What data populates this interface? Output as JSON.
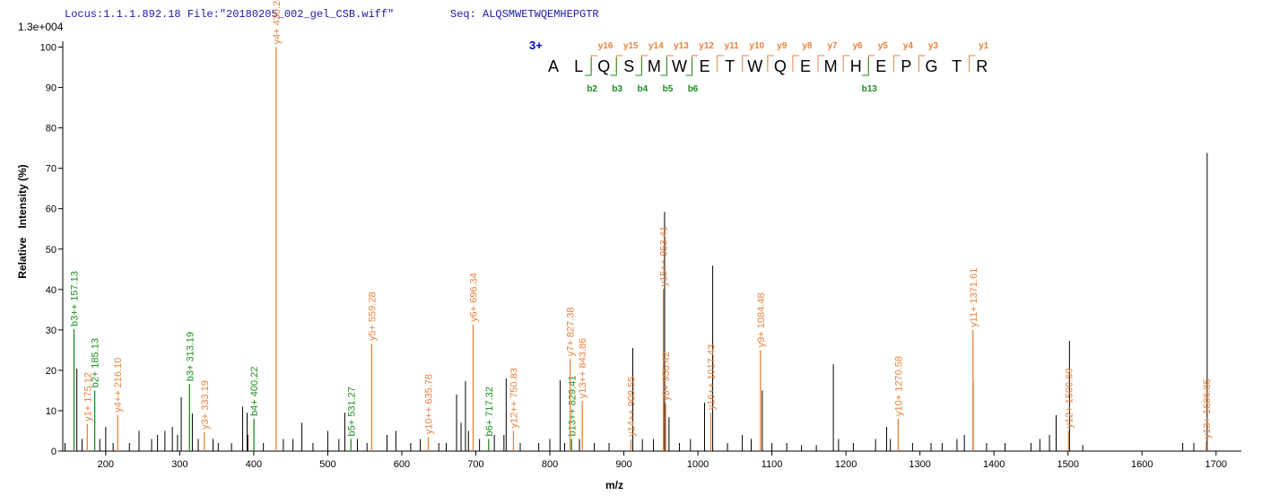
{
  "chart_data": {
    "type": "stem",
    "header": {
      "locus": "Locus:1.1.1.892.18 File:\"20180205_002_gel_CSB.wiff\"",
      "seq": "Seq: ALQSMWETWQEMHEPGTR"
    },
    "scale_label": "1.3e+004",
    "x_label": "m/z",
    "y_label": "Relative   Intensity (%)",
    "xlim": [
      142,
      1733
    ],
    "ylim": [
      0,
      101
    ],
    "xticks": [
      200,
      300,
      400,
      500,
      600,
      700,
      800,
      900,
      1000,
      1100,
      1200,
      1300,
      1400,
      1500,
      1600,
      1700
    ],
    "yticks": [
      0,
      10,
      20,
      30,
      40,
      50,
      60,
      70,
      80,
      90,
      100
    ],
    "peaks": {
      "color": "#000000",
      "x": [
        145,
        161,
        168,
        192,
        200,
        210,
        232,
        245,
        262,
        270,
        280,
        290,
        297,
        302,
        317,
        325,
        345,
        352,
        370,
        385,
        391,
        392,
        413,
        440,
        453,
        465,
        480,
        500,
        515,
        523,
        540,
        553,
        580,
        592,
        612,
        625,
        650,
        660,
        674,
        680,
        686,
        690,
        705,
        725,
        738,
        741,
        760,
        785,
        800,
        814,
        820,
        840,
        860,
        880,
        912,
        925,
        940,
        955,
        961,
        975,
        990,
        1009,
        1020,
        1040,
        1060,
        1072,
        1087,
        1100,
        1120,
        1140,
        1160,
        1183,
        1190,
        1210,
        1240,
        1255,
        1260,
        1290,
        1315,
        1330,
        1350,
        1360,
        1372,
        1390,
        1415,
        1450,
        1462,
        1475,
        1484,
        1502,
        1520,
        1655,
        1670,
        1688
      ],
      "values": [
        2,
        20.4,
        3,
        3,
        6,
        2,
        2,
        5,
        3,
        4,
        5,
        6,
        4,
        13.3,
        9.3,
        3,
        3,
        2,
        2,
        11,
        9.5,
        4,
        2,
        3,
        3,
        7,
        2,
        5,
        3,
        9.5,
        3,
        2,
        4,
        5,
        2,
        3,
        2,
        2,
        14,
        7,
        17.3,
        5,
        3,
        4,
        4,
        18,
        2,
        2,
        3,
        17.5,
        2,
        3,
        2,
        2,
        25.5,
        3,
        3,
        59.2,
        8.4,
        2,
        3,
        12,
        45.9,
        2,
        4,
        3,
        15,
        2,
        2,
        1.5,
        1.5,
        21.5,
        3,
        2,
        3,
        6,
        3,
        2,
        2,
        2,
        3,
        4,
        17.3,
        2,
        2,
        2,
        3,
        4,
        8.9,
        27.3,
        1.5,
        2,
        2,
        73.8
      ]
    },
    "series": [
      {
        "color": "#1e8c1e",
        "x": [
          157.13,
          185.13,
          313.19,
          400.22,
          531.27,
          717.32,
          829.41
        ],
        "values": [
          30.2,
          15,
          16.6,
          8,
          3,
          3,
          3
        ],
        "labels": [
          "b3++ 157.13",
          "b2+ 185.13",
          "b3+ 313.19",
          "b4+ 400.22",
          "b5+ 531.27",
          "b6+ 717.32",
          "b13++ 829.41"
        ]
      },
      {
        "color": "#e8823c",
        "x": [
          175.12,
          216.1,
          333.19,
          430.24,
          559.28,
          635.78,
          696.34,
          750.83,
          827.38,
          843.86,
          909.55,
          956.42,
          953.41,
          1017.43,
          1084.48,
          1270.58,
          1371.61,
          1500.69,
          1686.85
        ],
        "values": [
          6.7,
          8.9,
          4.7,
          100,
          26.6,
          3.5,
          31.3,
          5,
          22.8,
          12.4,
          2.9,
          11.8,
          40.1,
          9.5,
          25,
          8,
          30,
          5,
          2.4
        ],
        "labels": [
          "y1+ 175.12",
          "y4++ 216.10",
          "y3+ 333.19",
          "y4+ 430.24",
          "y5+ 559.28",
          "y10++ 635.78",
          "y6+ 696.34",
          "y12++ 750.83",
          "y7+ 827.38",
          "y13++ 843.86",
          "y14++ 909.55",
          "y8+ 956.42",
          "y15++ 953.41",
          "y16++ 1017.43",
          "y9+ 1084.48",
          "y10+ 1270.58",
          "y11+ 1371.61",
          "y12+ 1500.69",
          "y13+ 1686.85"
        ]
      }
    ],
    "peptide": {
      "charge": "3+",
      "charge_color": "#0000cc",
      "residues": [
        "A",
        "L",
        "Q",
        "S",
        "M",
        "W",
        "E",
        "T",
        "W",
        "Q",
        "E",
        "M",
        "H",
        "E",
        "P",
        "G",
        "T",
        "R"
      ],
      "y_color": "#e8823c",
      "b_color": "#1e8c1e",
      "y_ions": [
        null,
        "y16",
        "y15",
        "y14",
        "y13",
        "y12",
        "y11",
        "y10",
        "y9",
        "y8",
        "y7",
        "y6",
        "y5",
        "y4",
        "y3",
        null,
        "y1"
      ],
      "b_ions": [
        null,
        "b2",
        "b3",
        "b4",
        "b5",
        "b6",
        null,
        null,
        null,
        null,
        null,
        null,
        "b13",
        null,
        null,
        null,
        null
      ]
    }
  }
}
